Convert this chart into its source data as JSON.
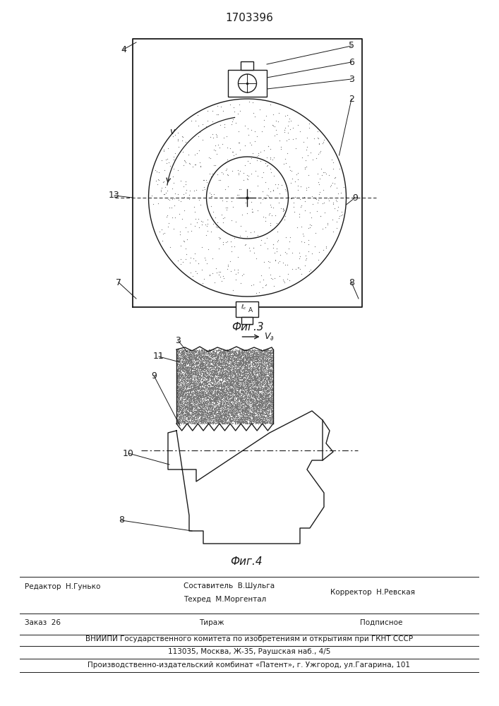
{
  "title": "1703396",
  "fig3_label": "Фиг.3",
  "fig4_label": "Фиг.4",
  "bg_color": "#ffffff",
  "line_color": "#1a1a1a",
  "footer_lines": [
    "Редактор  Н.Гунько",
    "Составитель  В.Шульга",
    "Техред  М.Моргентал",
    "Корректор  Н.Ревская",
    "Заказ  26",
    "Тираж",
    "Подписное",
    "ВНИИПИ Государственного комитета по изобретениям и открытиям при ГКНТ СССР",
    "113035, Москва, Ж-35, Раушская наб., 4/5",
    "Производственно-издательский комбинат «Патент», г. Ужгород, ул.Гагарина, 101"
  ]
}
